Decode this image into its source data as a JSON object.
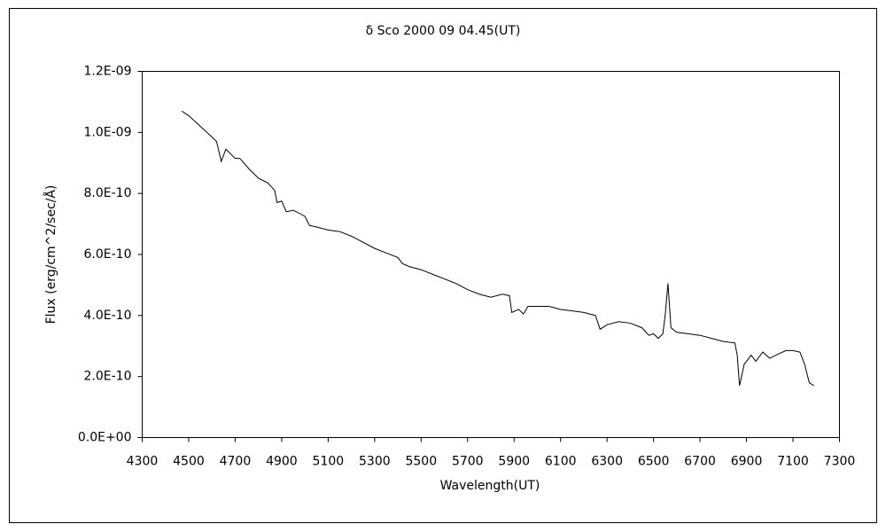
{
  "chart_data": {
    "type": "line",
    "title": "δ Sco  2000 09 04.45(UT)",
    "x_label": "Wavelength(UT)",
    "y_label": "Flux (erg/cm^2/sec/Å)",
    "xlim": [
      4300,
      7300
    ],
    "xticks": [
      4300,
      4500,
      4700,
      4900,
      5100,
      5300,
      5500,
      5700,
      5900,
      6100,
      6300,
      6500,
      6700,
      6900,
      7100,
      7300
    ],
    "ylim": [
      0,
      1.2e-09
    ],
    "yticks": [
      {
        "value": 0,
        "label": "0.0E+00"
      },
      {
        "value": 2e-10,
        "label": "2.0E-10"
      },
      {
        "value": 4e-10,
        "label": "4.0E-10"
      },
      {
        "value": 6e-10,
        "label": "6.0E-10"
      },
      {
        "value": 8e-10,
        "label": "8.0E-10"
      },
      {
        "value": 1e-09,
        "label": "1.0E-09"
      },
      {
        "value": 1.2e-09,
        "label": "1.2E-09"
      }
    ],
    "grid": false,
    "series": [
      {
        "color": "#000000",
        "x": [
          4470,
          4500,
          4550,
          4600,
          4620,
          4640,
          4660,
          4700,
          4720,
          4760,
          4800,
          4840,
          4870,
          4880,
          4900,
          4920,
          4950,
          5000,
          5020,
          5050,
          5100,
          5150,
          5200,
          5250,
          5300,
          5350,
          5400,
          5420,
          5450,
          5500,
          5550,
          5600,
          5650,
          5700,
          5750,
          5800,
          5850,
          5880,
          5890,
          5920,
          5940,
          5960,
          6000,
          6050,
          6100,
          6150,
          6200,
          6250,
          6270,
          6300,
          6350,
          6400,
          6450,
          6480,
          6500,
          6520,
          6540,
          6550,
          6562,
          6575,
          6600,
          6650,
          6700,
          6750,
          6800,
          6850,
          6860,
          6870,
          6890,
          6920,
          6940,
          6970,
          7000,
          7040,
          7070,
          7100,
          7130,
          7150,
          7170,
          7190
        ],
        "values": [
          1.07e-09,
          1.055e-09,
          1.02e-09,
          9.85e-10,
          9.7e-10,
          9.05e-10,
          9.45e-10,
          9.15e-10,
          9.15e-10,
          8.8e-10,
          8.5e-10,
          8.35e-10,
          8.1e-10,
          7.7e-10,
          7.75e-10,
          7.4e-10,
          7.45e-10,
          7.25e-10,
          6.95e-10,
          6.9e-10,
          6.8e-10,
          6.75e-10,
          6.6e-10,
          6.4e-10,
          6.2e-10,
          6.05e-10,
          5.9e-10,
          5.7e-10,
          5.6e-10,
          5.5e-10,
          5.35e-10,
          5.2e-10,
          5.05e-10,
          4.85e-10,
          4.7e-10,
          4.6e-10,
          4.7e-10,
          4.65e-10,
          4.1e-10,
          4.2e-10,
          4.05e-10,
          4.3e-10,
          4.3e-10,
          4.3e-10,
          4.2e-10,
          4.15e-10,
          4.1e-10,
          4e-10,
          3.55e-10,
          3.7e-10,
          3.8e-10,
          3.75e-10,
          3.6e-10,
          3.35e-10,
          3.4e-10,
          3.25e-10,
          3.4e-10,
          4e-10,
          5.05e-10,
          3.6e-10,
          3.45e-10,
          3.4e-10,
          3.35e-10,
          3.25e-10,
          3.15e-10,
          3.1e-10,
          2.7e-10,
          1.7e-10,
          2.4e-10,
          2.7e-10,
          2.5e-10,
          2.8e-10,
          2.6e-10,
          2.75e-10,
          2.85e-10,
          2.85e-10,
          2.8e-10,
          2.4e-10,
          1.8e-10,
          1.7e-10
        ]
      }
    ]
  }
}
